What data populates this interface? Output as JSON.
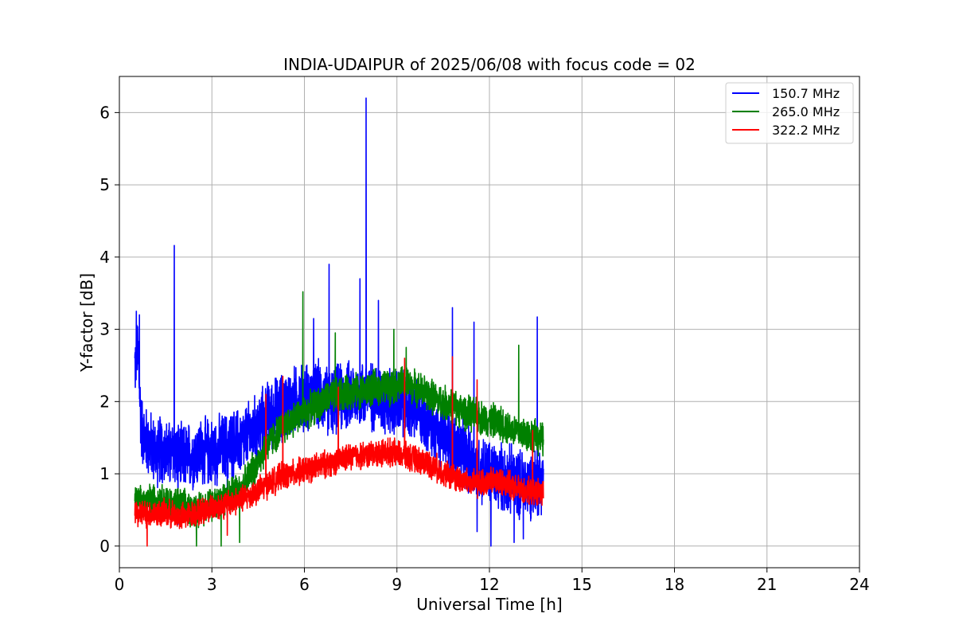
{
  "chart_data": {
    "type": "line",
    "title": "INDIA-UDAIPUR of 2025/06/08 with focus code = 02",
    "xlabel": "Universal Time [h]",
    "ylabel": "Y-factor [dB]",
    "xlim": [
      0,
      24
    ],
    "ylim": [
      -0.3,
      6.5
    ],
    "xticks": [
      0,
      3,
      6,
      9,
      12,
      15,
      18,
      21,
      24
    ],
    "yticks": [
      0,
      1,
      2,
      3,
      4,
      5,
      6
    ],
    "grid": true,
    "legend_position": "top-right",
    "series": [
      {
        "name": "150.7 MHz",
        "color": "#0000ff",
        "x": [
          0.5,
          0.6,
          0.7,
          0.8,
          1.0,
          1.2,
          1.4,
          1.6,
          1.8,
          2.0,
          2.3,
          2.6,
          3.0,
          3.3,
          3.6,
          4.0,
          4.4,
          4.8,
          5.2,
          5.6,
          6.0,
          6.4,
          6.8,
          7.2,
          7.6,
          8.0,
          8.4,
          8.8,
          9.2,
          9.6,
          10.0,
          10.4,
          10.8,
          11.2,
          11.6,
          12.0,
          12.4,
          12.8,
          13.2,
          13.6,
          13.75
        ],
        "y": [
          2.5,
          2.7,
          1.7,
          1.5,
          1.4,
          1.3,
          1.35,
          1.25,
          1.3,
          1.2,
          1.25,
          1.3,
          1.3,
          1.35,
          1.4,
          1.45,
          1.6,
          1.8,
          1.9,
          2.0,
          2.05,
          2.1,
          2.0,
          2.05,
          2.1,
          2.1,
          2.05,
          2.0,
          1.95,
          1.9,
          1.75,
          1.6,
          1.4,
          1.25,
          1.1,
          1.0,
          0.95,
          0.9,
          0.85,
          0.9,
          1.0
        ],
        "peaks": [
          [
            0.55,
            3.25
          ],
          [
            0.65,
            3.2
          ],
          [
            1.78,
            4.16
          ],
          [
            6.3,
            3.15
          ],
          [
            6.8,
            3.9
          ],
          [
            7.8,
            3.7
          ],
          [
            8.0,
            6.2
          ],
          [
            8.4,
            3.4
          ],
          [
            10.8,
            3.3
          ],
          [
            11.5,
            3.1
          ],
          [
            13.55,
            3.17
          ]
        ],
        "dips": [
          [
            1.9,
            0.3
          ],
          [
            3.5,
            0.4
          ],
          [
            11.6,
            0.2
          ],
          [
            12.05,
            0.0
          ],
          [
            12.8,
            0.05
          ],
          [
            13.1,
            0.1
          ]
        ]
      },
      {
        "name": "265.0 MHz",
        "color": "#008000",
        "x": [
          0.5,
          0.8,
          1.2,
          1.6,
          2.0,
          2.4,
          2.8,
          3.2,
          3.6,
          4.0,
          4.4,
          4.8,
          5.2,
          5.6,
          6.0,
          6.4,
          6.8,
          7.2,
          7.6,
          8.0,
          8.4,
          8.8,
          9.2,
          9.6,
          10.0,
          10.4,
          10.8,
          11.2,
          11.6,
          12.0,
          12.4,
          12.8,
          13.2,
          13.6,
          13.75
        ],
        "y": [
          0.6,
          0.6,
          0.65,
          0.6,
          0.55,
          0.5,
          0.55,
          0.65,
          0.7,
          0.85,
          1.1,
          1.4,
          1.6,
          1.75,
          1.85,
          1.95,
          2.05,
          2.1,
          2.15,
          2.15,
          2.2,
          2.2,
          2.25,
          2.2,
          2.1,
          2.0,
          1.95,
          1.85,
          1.8,
          1.75,
          1.7,
          1.6,
          1.55,
          1.5,
          1.45
        ],
        "peaks": [
          [
            5.95,
            3.52
          ],
          [
            7.0,
            2.95
          ],
          [
            8.9,
            3.0
          ],
          [
            9.3,
            2.75
          ],
          [
            12.95,
            2.78
          ]
        ],
        "dips": [
          [
            2.5,
            0.0
          ],
          [
            3.3,
            0.0
          ],
          [
            3.9,
            0.05
          ]
        ]
      },
      {
        "name": "322.2 MHz",
        "color": "#ff0000",
        "x": [
          0.5,
          0.8,
          1.2,
          1.6,
          2.0,
          2.4,
          2.8,
          3.2,
          3.6,
          4.0,
          4.4,
          4.8,
          5.2,
          5.6,
          6.0,
          6.4,
          6.8,
          7.2,
          7.6,
          8.0,
          8.4,
          8.8,
          9.2,
          9.6,
          10.0,
          10.4,
          10.8,
          11.2,
          11.6,
          12.0,
          12.4,
          12.8,
          13.2,
          13.6,
          13.75
        ],
        "y": [
          0.45,
          0.45,
          0.45,
          0.45,
          0.4,
          0.45,
          0.5,
          0.55,
          0.6,
          0.65,
          0.75,
          0.85,
          0.95,
          1.0,
          1.05,
          1.1,
          1.15,
          1.2,
          1.25,
          1.25,
          1.3,
          1.3,
          1.25,
          1.2,
          1.15,
          1.05,
          0.95,
          0.9,
          0.85,
          0.9,
          0.9,
          0.8,
          0.75,
          0.75,
          0.7
        ],
        "peaks": [
          [
            4.75,
            2.1
          ],
          [
            5.3,
            2.35
          ],
          [
            7.1,
            2.2
          ],
          [
            9.25,
            2.6
          ],
          [
            10.8,
            2.62
          ],
          [
            11.6,
            2.3
          ],
          [
            13.4,
            1.6
          ]
        ],
        "dips": [
          [
            0.9,
            0.0
          ],
          [
            3.5,
            0.15
          ]
        ]
      }
    ]
  }
}
